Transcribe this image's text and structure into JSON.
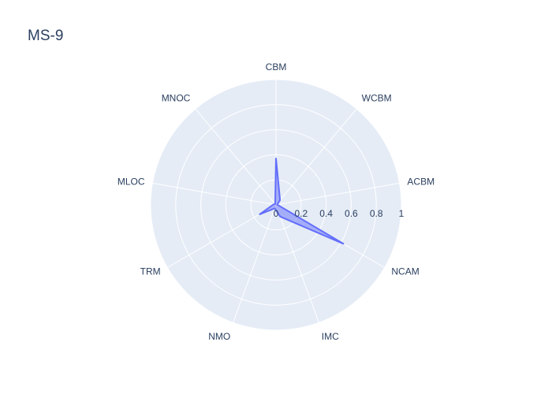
{
  "chart_data": {
    "type": "radar",
    "title": "MS-9",
    "categories": [
      "CBM",
      "WCBM",
      "ACBM",
      "NCAM",
      "IMC",
      "NMO",
      "TRM",
      "MLOC",
      "MNOC"
    ],
    "series": [
      {
        "values": [
          0.37,
          0.05,
          0.01,
          0.62,
          0.1,
          0.03,
          0.15,
          0.02,
          0.01
        ]
      }
    ],
    "radial_range": [
      0,
      1
    ],
    "radial_ticks": [
      "0",
      "0.2",
      "0.4",
      "0.6",
      "0.8",
      "1"
    ],
    "grid": true,
    "colors": {
      "series_line": "#636efa",
      "series_fill": "rgba(99,110,250,0.5)",
      "polar_bg": "#e5ecf6",
      "grid": "#ffffff",
      "text": "#2a3f5f"
    }
  }
}
